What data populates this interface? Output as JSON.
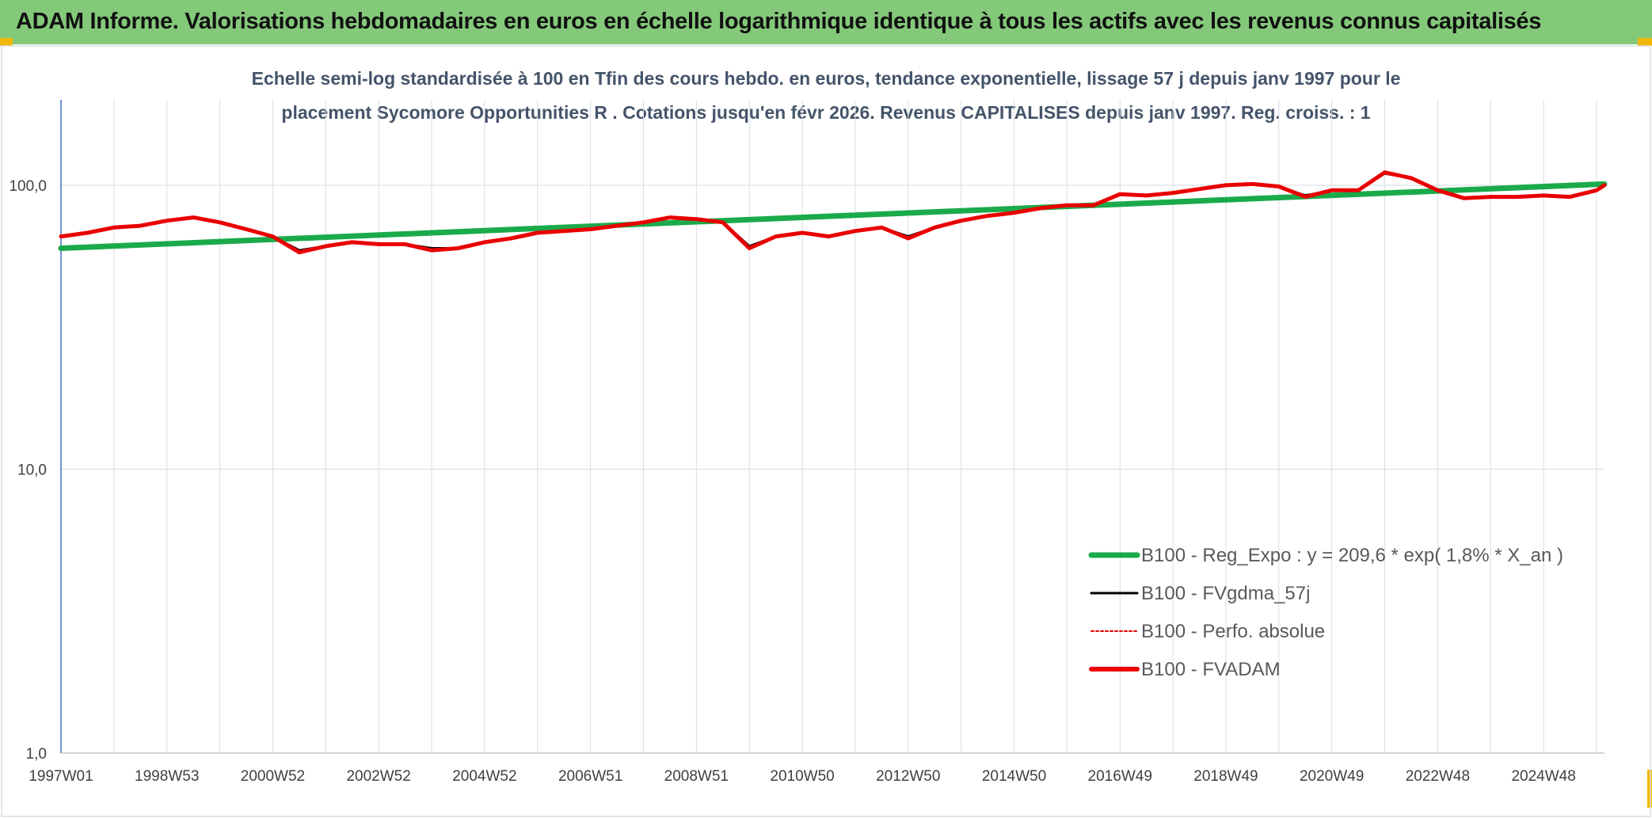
{
  "header": {
    "title": "ADAM Informe. Valorisations hebdomadaires en euros en échelle logarithmique identique à tous les actifs avec les revenus connus capitalisés"
  },
  "colors": {
    "header_bg": "#84c97a",
    "corner_accent": "#f2b705",
    "regression": "#1aaa4a",
    "moving_average": "#000000",
    "absolute_perf": "#e00000",
    "fvadam": "#ee0000",
    "grid": "#d9dde2",
    "axis": "#4472c4",
    "text": "#404040"
  },
  "chart_data": {
    "type": "line",
    "title_lines": [
      "Echelle semi-log standardisée à 100 en Tfin des cours hebdo. en euros, tendance exponentielle, lissage 57 j depuis janv 1997 pour le",
      "placement Sycomore Opportunities R . Cotations jusqu'en févr 2026. Revenus CAPITALISES depuis janv 1997. Reg. croiss. : 1"
    ],
    "y_scale": "log",
    "ylim": [
      1,
      200
    ],
    "y_ticks": [
      1,
      10,
      100
    ],
    "y_tick_labels": [
      "1,0",
      "10,0",
      "100,0"
    ],
    "x_range": [
      1997.0,
      2026.15
    ],
    "x_ticks": [
      1997.0,
      1999.0,
      2001.0,
      2003.0,
      2005.0,
      2007.0,
      2009.0,
      2011.0,
      2013.0,
      2015.0,
      2017.0,
      2019.0,
      2021.0,
      2023.0,
      2025.0
    ],
    "x_tick_labels": [
      "1997W01",
      "1998W53",
      "2000W52",
      "2002W52",
      "2004W52",
      "2006W51",
      "2008W51",
      "2010W50",
      "2012W50",
      "2014W50",
      "2016W49",
      "2018W49",
      "2020W49",
      "2022W48",
      "2024W48"
    ],
    "grid": true,
    "legend_position": "bottom-right",
    "legend": [
      "B100 - Reg_Expo : y = 209,6 * exp( 1,8% *  X_an )",
      "B100 - FVgdma_57j",
      "B100 - Perfo. absolue",
      "B100 - FVADAM"
    ],
    "series": [
      {
        "name": "B100 - Reg_Expo : y = 209,6 * exp( 1,8% *  X_an )",
        "style": "thick-solid",
        "x": [
          1997.0,
          2026.15
        ],
        "y": [
          60,
          101
        ]
      },
      {
        "name": "B100 - FVgdma_57j",
        "style": "thin-solid",
        "x": [
          1997.0,
          1997.5,
          1998.0,
          1998.5,
          1999.0,
          1999.5,
          2000.0,
          2000.5,
          2001.0,
          2001.5,
          2002.0,
          2002.5,
          2003.0,
          2003.5,
          2004.0,
          2004.5,
          2005.0,
          2005.5,
          2006.0,
          2006.5,
          2007.0,
          2007.5,
          2008.0,
          2008.5,
          2009.0,
          2009.5,
          2010.0,
          2010.5,
          2011.0,
          2011.5,
          2012.0,
          2012.5,
          2013.0,
          2013.5,
          2014.0,
          2014.5,
          2015.0,
          2015.5,
          2016.0,
          2016.5,
          2017.0,
          2017.5,
          2018.0,
          2018.5,
          2019.0,
          2019.5,
          2020.0,
          2020.5,
          2021.0,
          2021.5,
          2022.0,
          2022.5,
          2023.0,
          2023.5,
          2024.0,
          2024.5,
          2025.0,
          2025.5,
          2026.0,
          2026.15
        ],
        "y": [
          66,
          68,
          71,
          72,
          75,
          77,
          74,
          70,
          66,
          59,
          61,
          63,
          62,
          62,
          60,
          60,
          63,
          65,
          68,
          69,
          70,
          72,
          74,
          77,
          76,
          74,
          61,
          66,
          68,
          66,
          69,
          71,
          66,
          71,
          75,
          78,
          80,
          83,
          85,
          85,
          93,
          92,
          94,
          97,
          100,
          101,
          99,
          92,
          96,
          96,
          110,
          106,
          96,
          90,
          91,
          91,
          92,
          91,
          96,
          100
        ]
      },
      {
        "name": "B100 - Perfo. absolue",
        "style": "dotted",
        "x": [
          1997.0,
          1997.5,
          1998.0,
          1998.5,
          1999.0,
          1999.5,
          2000.0,
          2000.5,
          2001.0,
          2001.5,
          2002.0,
          2002.5,
          2003.0,
          2003.5,
          2004.0,
          2004.5,
          2005.0,
          2005.5,
          2006.0,
          2006.5,
          2007.0,
          2007.5,
          2008.0,
          2008.5,
          2009.0,
          2009.5,
          2010.0,
          2010.5,
          2011.0,
          2011.5,
          2012.0,
          2012.5,
          2013.0,
          2013.5,
          2014.0,
          2014.5,
          2015.0,
          2015.5,
          2016.0,
          2016.5,
          2017.0,
          2017.5,
          2018.0,
          2018.5,
          2019.0,
          2019.5,
          2020.0,
          2020.5,
          2021.0,
          2021.5,
          2022.0,
          2022.5,
          2023.0,
          2023.5,
          2024.0,
          2024.5,
          2025.0,
          2025.5,
          2026.0,
          2026.15
        ],
        "y": [
          66,
          68,
          71,
          72,
          75,
          77,
          74,
          70,
          66,
          58,
          61,
          63,
          62,
          62,
          59,
          60,
          63,
          65,
          68,
          69,
          70,
          72,
          74,
          77,
          76,
          74,
          60,
          66,
          68,
          66,
          69,
          71,
          65,
          71,
          75,
          78,
          80,
          83,
          85,
          85,
          93,
          92,
          94,
          97,
          100,
          101,
          99,
          91,
          96,
          96,
          111,
          106,
          96,
          90,
          91,
          91,
          92,
          91,
          96,
          100
        ]
      },
      {
        "name": "B100 - FVADAM",
        "style": "thick-solid",
        "x": [
          1997.0,
          1997.5,
          1998.0,
          1998.5,
          1999.0,
          1999.5,
          2000.0,
          2000.5,
          2001.0,
          2001.5,
          2002.0,
          2002.5,
          2003.0,
          2003.5,
          2004.0,
          2004.5,
          2005.0,
          2005.5,
          2006.0,
          2006.5,
          2007.0,
          2007.5,
          2008.0,
          2008.5,
          2009.0,
          2009.5,
          2010.0,
          2010.5,
          2011.0,
          2011.5,
          2012.0,
          2012.5,
          2013.0,
          2013.5,
          2014.0,
          2014.5,
          2015.0,
          2015.5,
          2016.0,
          2016.5,
          2017.0,
          2017.5,
          2018.0,
          2018.5,
          2019.0,
          2019.5,
          2020.0,
          2020.5,
          2021.0,
          2021.5,
          2022.0,
          2022.5,
          2023.0,
          2023.5,
          2024.0,
          2024.5,
          2025.0,
          2025.5,
          2026.0,
          2026.15
        ],
        "y": [
          66,
          68,
          71,
          72,
          75,
          77,
          74,
          70,
          66,
          58,
          61,
          63,
          62,
          62,
          59,
          60,
          63,
          65,
          68,
          69,
          70,
          72,
          74,
          77,
          76,
          74,
          60,
          66,
          68,
          66,
          69,
          71,
          65,
          71,
          75,
          78,
          80,
          83,
          85,
          85,
          93,
          92,
          94,
          97,
          100,
          101,
          99,
          91,
          96,
          96,
          111,
          106,
          96,
          90,
          91,
          91,
          92,
          91,
          96,
          100
        ]
      }
    ]
  }
}
